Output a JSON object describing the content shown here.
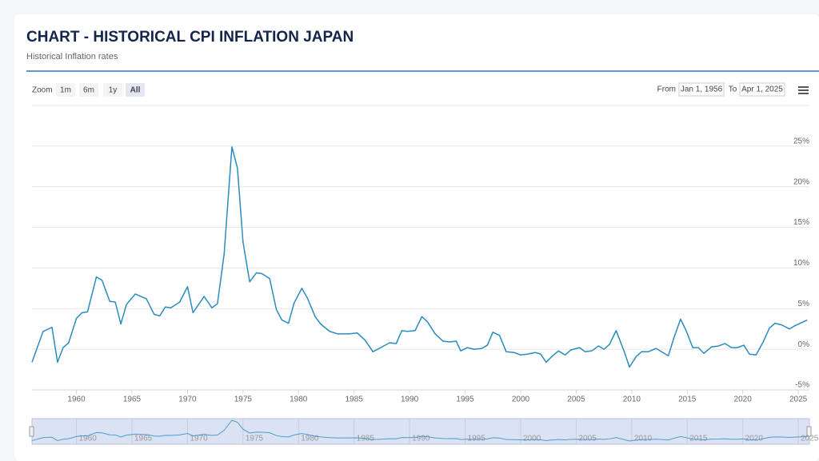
{
  "header": {
    "title": "CHART - HISTORICAL CPI INFLATION JAPAN",
    "subtitle": "Historical Inflation rates"
  },
  "toolbar": {
    "zoom_label": "Zoom",
    "zoom_buttons": [
      {
        "label": "1m",
        "selected": false
      },
      {
        "label": "6m",
        "selected": false
      },
      {
        "label": "1y",
        "selected": false
      },
      {
        "label": "All",
        "selected": true
      }
    ],
    "from_label": "From",
    "from_date": "Jan 1, 1956",
    "to_label": "To",
    "to_date": "Apr 1, 2025"
  },
  "chart_data": {
    "type": "line",
    "x": [
      1956,
      1957,
      1957.8,
      1958.3,
      1958.8,
      1959.3,
      1960,
      1960.5,
      1961,
      1961.8,
      1962.3,
      1963,
      1963.5,
      1964,
      1964.5,
      1965.3,
      1966.3,
      1967,
      1967.5,
      1968,
      1968.5,
      1969.3,
      1970,
      1970.5,
      1971.5,
      1972.2,
      1972.7,
      1973.3,
      1974,
      1974.5,
      1975,
      1975.6,
      1976.2,
      1976.7,
      1977.4,
      1978,
      1978.5,
      1979.1,
      1979.6,
      1980.3,
      1980.8,
      1981.5,
      1982,
      1982.8,
      1983.5,
      1984.5,
      1985.3,
      1986,
      1986.7,
      1987.4,
      1988.2,
      1988.8,
      1989.3,
      1989.8,
      1990.5,
      1991.1,
      1991.6,
      1992.3,
      1993,
      1993.6,
      1994.2,
      1994.6,
      1995.2,
      1995.8,
      1996.5,
      1997,
      1997.5,
      1998.1,
      1998.7,
      1999.4,
      2000,
      2000.6,
      2001.3,
      2001.8,
      2002.3,
      2002.8,
      2003.4,
      2004,
      2004.5,
      2005.3,
      2005.8,
      2006.4,
      2007,
      2007.5,
      2008,
      2008.6,
      2009.3,
      2009.8,
      2010.4,
      2010.9,
      2011.5,
      2012.2,
      2012.8,
      2013.3,
      2013.8,
      2014.4,
      2014.9,
      2015.5,
      2016,
      2016.5,
      2017.2,
      2017.8,
      2018.4,
      2019,
      2019.5,
      2020.1,
      2020.6,
      2021.2,
      2021.8,
      2022.4,
      2022.9,
      2023.5,
      2024.2,
      2024.7,
      2025.8
    ],
    "series": [
      {
        "color": "#2a8bbf",
        "values": [
          -1.6,
          2.2,
          2.7,
          -1.6,
          0.2,
          0.8,
          3.8,
          4.5,
          4.6,
          8.9,
          8.5,
          5.9,
          5.8,
          3.1,
          5.5,
          6.8,
          6.2,
          4.3,
          4.1,
          5.2,
          5.1,
          5.8,
          7.7,
          4.5,
          6.5,
          5.1,
          5.6,
          11.7,
          24.9,
          22.3,
          13.2,
          8.3,
          9.4,
          9.3,
          8.7,
          4.9,
          3.6,
          3.2,
          5.7,
          7.5,
          6.3,
          4.0,
          3.1,
          2.2,
          1.9,
          1.9,
          2.0,
          1.1,
          -0.3,
          0.2,
          0.8,
          0.7,
          2.3,
          2.2,
          2.3,
          4.0,
          3.4,
          1.9,
          1.0,
          0.9,
          1.0,
          -0.2,
          0.2,
          0.0,
          0.1,
          0.5,
          2.1,
          1.7,
          -0.3,
          -0.4,
          -0.7,
          -0.6,
          -0.4,
          -0.6,
          -1.6,
          -0.9,
          -0.2,
          -0.7,
          -0.1,
          0.2,
          -0.3,
          -0.2,
          0.4,
          0.0,
          0.6,
          2.3,
          -0.2,
          -2.2,
          -0.9,
          -0.3,
          -0.3,
          0.1,
          -0.4,
          -0.8,
          1.4,
          3.7,
          2.3,
          0.2,
          0.2,
          -0.5,
          0.3,
          0.4,
          0.7,
          0.2,
          0.2,
          0.5,
          -0.6,
          -0.7,
          0.8,
          2.6,
          3.2,
          3.0,
          2.5,
          2.9,
          3.6
        ]
      }
    ],
    "xlim": [
      1956,
      2026
    ],
    "xticks": [
      1960,
      1965,
      1970,
      1975,
      1980,
      1985,
      1990,
      1995,
      2000,
      2005,
      2010,
      2015,
      2020,
      2025
    ],
    "ylim": [
      -5,
      30
    ],
    "yticks": [
      {
        "value": -5,
        "label": "-5%"
      },
      {
        "value": 0,
        "label": "0%"
      },
      {
        "value": 5,
        "label": "5%"
      },
      {
        "value": 10,
        "label": "10%"
      },
      {
        "value": 15,
        "label": "15%"
      },
      {
        "value": 20,
        "label": "20%"
      },
      {
        "value": 25,
        "label": "25%"
      }
    ],
    "grid": true
  }
}
